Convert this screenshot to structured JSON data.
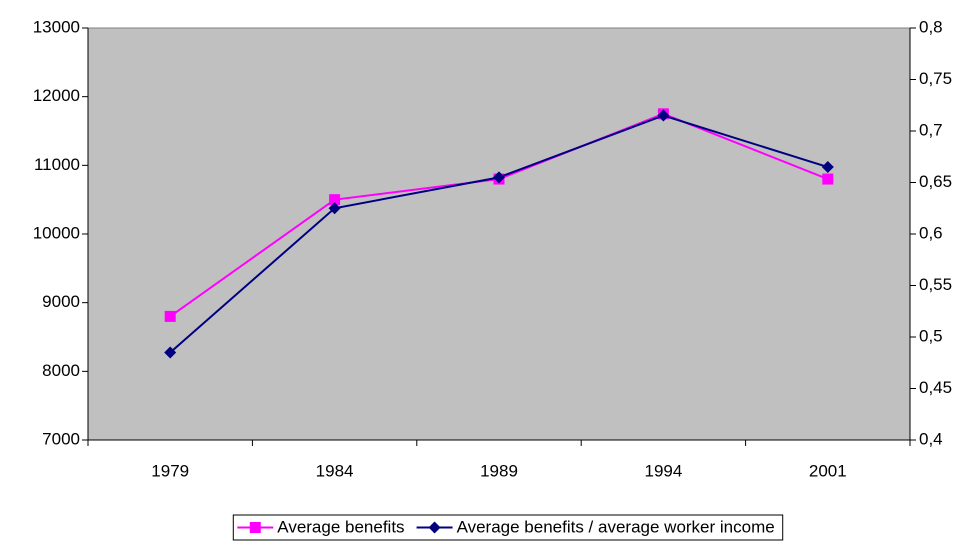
{
  "chart_data": {
    "type": "line",
    "categories": [
      "1979",
      "1984",
      "1989",
      "1994",
      "2001"
    ],
    "series": [
      {
        "name": "Average benefits",
        "color": "#ff00ff",
        "marker": "square",
        "values": [
          8800,
          10500,
          10800,
          11750,
          10800
        ]
      },
      {
        "name": "Average benefits / average worker income",
        "color": "#000080",
        "marker": "diamond",
        "axis": "y2",
        "values": [
          0.485,
          0.625,
          0.655,
          0.715,
          0.665
        ]
      }
    ],
    "ylim": [
      7000,
      13000
    ],
    "yticks": [
      7000,
      8000,
      9000,
      10000,
      11000,
      12000,
      13000
    ],
    "y2lim": [
      0.4,
      0.8
    ],
    "y2ticks": [
      {
        "value": 0.4,
        "label": "0,4"
      },
      {
        "value": 0.45,
        "label": "0,45"
      },
      {
        "value": 0.5,
        "label": "0,5"
      },
      {
        "value": 0.55,
        "label": "0,55"
      },
      {
        "value": 0.6,
        "label": "0,6"
      },
      {
        "value": 0.65,
        "label": "0,65"
      },
      {
        "value": 0.7,
        "label": "0,7"
      },
      {
        "value": 0.75,
        "label": "0,75"
      },
      {
        "value": 0.8,
        "label": "0,8"
      }
    ],
    "grid": false,
    "legend": "bottom",
    "background": "#c0c0c0"
  }
}
